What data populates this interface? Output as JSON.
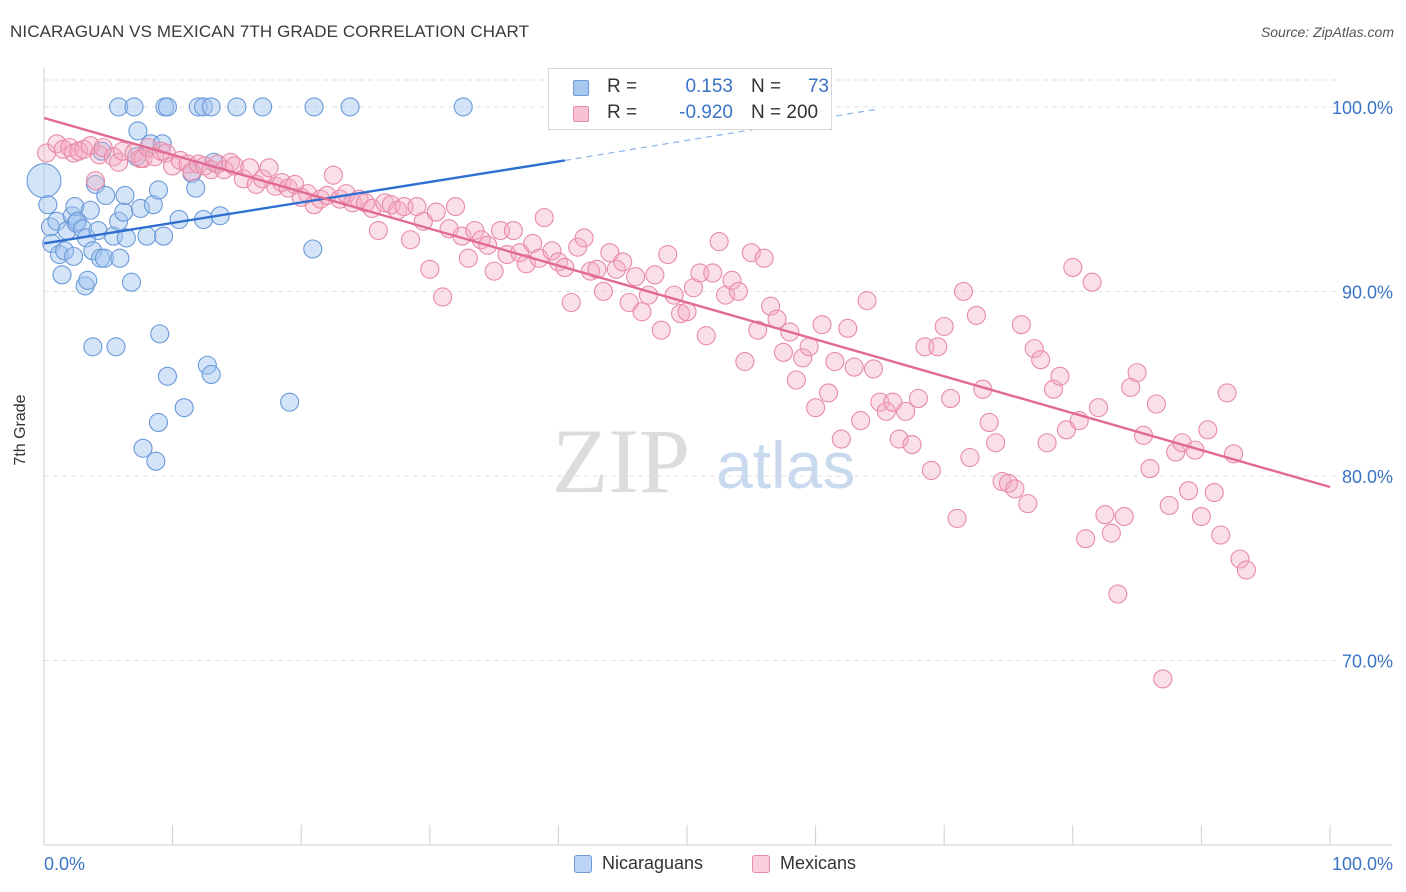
{
  "title": "NICARAGUAN VS MEXICAN 7TH GRADE CORRELATION CHART",
  "source": "Source: ZipAtlas.com",
  "watermark": {
    "zip": "ZIP",
    "atlas": "atlas"
  },
  "legend_top": {
    "rows": [
      {
        "r_label": "R =",
        "r_value": "0.153",
        "n_label": "N =",
        "n_value": "73",
        "color": "#a9c8f0",
        "border": "#6a9ad8"
      },
      {
        "r_label": "R =",
        "r_value": "-0.920",
        "n_label": "N = 200",
        "n_value": "",
        "color": "#f7c3d3",
        "border": "#e88aa8"
      }
    ]
  },
  "legend_bottom": [
    {
      "label": "Nicaraguans",
      "color": "#bcd4f5",
      "border": "#6a9ad8"
    },
    {
      "label": "Mexicans",
      "color": "#f9cfdc",
      "border": "#e88aa8"
    }
  ],
  "chart_data": {
    "type": "scatter",
    "title": "NICARAGUAN VS MEXICAN 7TH GRADE CORRELATION CHART",
    "xlabel": "",
    "ylabel": "7th Grade",
    "xlim": [
      0,
      100
    ],
    "ylim": [
      60,
      102
    ],
    "x_tick_labels": [
      "0.0%",
      "100.0%"
    ],
    "y_ticks": [
      70,
      80,
      90,
      100
    ],
    "y_tick_labels": [
      "70.0%",
      "80.0%",
      "90.0%",
      "100.0%"
    ],
    "grid": true,
    "series": [
      {
        "name": "Nicaraguans",
        "color": "#6a9ad8",
        "fill": "rgba(160,195,240,0.45)",
        "trend": {
          "x": [
            0,
            40.5
          ],
          "y": [
            92.6,
            97.1
          ],
          "dashed_to": [
            65,
            99.9
          ]
        },
        "points": [
          [
            5.8,
            100
          ],
          [
            7,
            100
          ],
          [
            9.4,
            100
          ],
          [
            9.6,
            100
          ],
          [
            12,
            100
          ],
          [
            12.4,
            100
          ],
          [
            13,
            100
          ],
          [
            15,
            100
          ],
          [
            17,
            100
          ],
          [
            21,
            100
          ],
          [
            23.8,
            100
          ],
          [
            32.6,
            100
          ],
          [
            0,
            96
          ],
          [
            0.3,
            94.7
          ],
          [
            0.5,
            93.5
          ],
          [
            0.6,
            92.6
          ],
          [
            1,
            93.8
          ],
          [
            1.2,
            92
          ],
          [
            1.4,
            90.9
          ],
          [
            1.6,
            92.2
          ],
          [
            1.8,
            93.3
          ],
          [
            2.2,
            94.1
          ],
          [
            2.3,
            91.9
          ],
          [
            2.5,
            93.7
          ],
          [
            2.4,
            94.6
          ],
          [
            2.6,
            93.8
          ],
          [
            3,
            93.4
          ],
          [
            3.2,
            90.3
          ],
          [
            3.3,
            92.9
          ],
          [
            3.4,
            90.6
          ],
          [
            3.6,
            94.4
          ],
          [
            3.8,
            92.2
          ],
          [
            3.8,
            87
          ],
          [
            4,
            95.8
          ],
          [
            4.2,
            93.3
          ],
          [
            4.4,
            91.8
          ],
          [
            4.5,
            97.6
          ],
          [
            4.7,
            91.8
          ],
          [
            4.8,
            95.2
          ],
          [
            5.4,
            93
          ],
          [
            5.6,
            87
          ],
          [
            5.8,
            93.8
          ],
          [
            5.9,
            91.8
          ],
          [
            6.2,
            94.3
          ],
          [
            6.3,
            95.2
          ],
          [
            6.4,
            92.9
          ],
          [
            6.8,
            90.5
          ],
          [
            7.2,
            97.3
          ],
          [
            7.3,
            98.7
          ],
          [
            7.5,
            94.5
          ],
          [
            7.7,
            81.5
          ],
          [
            8,
            93
          ],
          [
            8.3,
            98
          ],
          [
            8.5,
            94.7
          ],
          [
            8.7,
            80.8
          ],
          [
            8.9,
            95.5
          ],
          [
            8.9,
            82.9
          ],
          [
            9,
            87.7
          ],
          [
            9.2,
            98
          ],
          [
            9.3,
            93
          ],
          [
            9.6,
            85.4
          ],
          [
            10.5,
            93.9
          ],
          [
            10.9,
            83.7
          ],
          [
            11.5,
            96.4
          ],
          [
            11.8,
            95.6
          ],
          [
            12.4,
            93.9
          ],
          [
            12.7,
            86
          ],
          [
            13,
            85.5
          ],
          [
            13.2,
            97
          ],
          [
            13.7,
            94.1
          ],
          [
            19.1,
            84
          ],
          [
            20.9,
            92.3
          ]
        ]
      },
      {
        "name": "Mexicans",
        "color": "#e88aa8",
        "fill": "rgba(245,170,195,0.38)",
        "trend": {
          "x": [
            0,
            100
          ],
          "y": [
            99.4,
            79.4
          ]
        },
        "points": [
          [
            0.2,
            97.5
          ],
          [
            1,
            98
          ],
          [
            1.5,
            97.7
          ],
          [
            2,
            97.8
          ],
          [
            2.3,
            97.5
          ],
          [
            2.7,
            97.6
          ],
          [
            3.1,
            97.7
          ],
          [
            3.6,
            97.9
          ],
          [
            4,
            96
          ],
          [
            4.3,
            97.4
          ],
          [
            4.6,
            97.8
          ],
          [
            5.4,
            97.3
          ],
          [
            5.8,
            97
          ],
          [
            6.1,
            97.6
          ],
          [
            7,
            97.5
          ],
          [
            7.5,
            97.2
          ],
          [
            7.7,
            97.2
          ],
          [
            8.1,
            97.8
          ],
          [
            8.6,
            97.3
          ],
          [
            9.1,
            97.6
          ],
          [
            9.5,
            97.5
          ],
          [
            10,
            96.8
          ],
          [
            10.6,
            97.1
          ],
          [
            11.2,
            96.9
          ],
          [
            11.5,
            96.5
          ],
          [
            12,
            96.9
          ],
          [
            12.5,
            96.8
          ],
          [
            13,
            96.6
          ],
          [
            13.5,
            96.9
          ],
          [
            14,
            96.6
          ],
          [
            14.5,
            97
          ],
          [
            14.8,
            96.8
          ],
          [
            15.5,
            96.1
          ],
          [
            16,
            96.7
          ],
          [
            16.5,
            95.8
          ],
          [
            17,
            96.1
          ],
          [
            17.5,
            96.7
          ],
          [
            18,
            95.7
          ],
          [
            18.5,
            95.9
          ],
          [
            19,
            95.6
          ],
          [
            19.5,
            95.8
          ],
          [
            20,
            95.1
          ],
          [
            20.5,
            95.3
          ],
          [
            21,
            94.7
          ],
          [
            21.5,
            95
          ],
          [
            22,
            95.2
          ],
          [
            22.5,
            96.3
          ],
          [
            23,
            95
          ],
          [
            23.5,
            95.3
          ],
          [
            24,
            94.8
          ],
          [
            24.5,
            95
          ],
          [
            25,
            94.8
          ],
          [
            25.5,
            94.5
          ],
          [
            26,
            93.3
          ],
          [
            26.5,
            94.8
          ],
          [
            27,
            94.7
          ],
          [
            27.5,
            94.4
          ],
          [
            28,
            94.6
          ],
          [
            28.5,
            92.8
          ],
          [
            29,
            94.6
          ],
          [
            29.5,
            93.8
          ],
          [
            30,
            91.2
          ],
          [
            30.5,
            94.3
          ],
          [
            31,
            89.7
          ],
          [
            31.5,
            93.4
          ],
          [
            32,
            94.6
          ],
          [
            32.5,
            93
          ],
          [
            33,
            91.8
          ],
          [
            33.5,
            93.3
          ],
          [
            34,
            92.8
          ],
          [
            34.5,
            92.5
          ],
          [
            35,
            91.1
          ],
          [
            35.5,
            93.3
          ],
          [
            36,
            92
          ],
          [
            36.5,
            93.3
          ],
          [
            37,
            92.1
          ],
          [
            37.5,
            91.5
          ],
          [
            38,
            92.6
          ],
          [
            38.5,
            91.8
          ],
          [
            38.9,
            94
          ],
          [
            39.5,
            92.2
          ],
          [
            40,
            91.6
          ],
          [
            40.5,
            91.3
          ],
          [
            41,
            89.4
          ],
          [
            41.5,
            92.4
          ],
          [
            42,
            92.9
          ],
          [
            42.5,
            91.1
          ],
          [
            43,
            91.2
          ],
          [
            43.5,
            90
          ],
          [
            44,
            92.1
          ],
          [
            44.5,
            91.2
          ],
          [
            45,
            91.6
          ],
          [
            45.5,
            89.4
          ],
          [
            46,
            90.8
          ],
          [
            46.5,
            88.9
          ],
          [
            47,
            89.8
          ],
          [
            47.5,
            90.9
          ],
          [
            48,
            87.9
          ],
          [
            48.5,
            92
          ],
          [
            49,
            89.8
          ],
          [
            49.5,
            88.8
          ],
          [
            50,
            88.9
          ],
          [
            50.5,
            90.2
          ],
          [
            51,
            91
          ],
          [
            51.5,
            87.6
          ],
          [
            52,
            91
          ],
          [
            52.5,
            92.7
          ],
          [
            53,
            89.8
          ],
          [
            53.5,
            90.6
          ],
          [
            54,
            90
          ],
          [
            54.5,
            86.2
          ],
          [
            55,
            92.1
          ],
          [
            55.5,
            87.9
          ],
          [
            56,
            91.8
          ],
          [
            56.5,
            89.2
          ],
          [
            57,
            88.5
          ],
          [
            57.5,
            86.7
          ],
          [
            58,
            87.8
          ],
          [
            58.5,
            85.2
          ],
          [
            59,
            86.4
          ],
          [
            59.5,
            87
          ],
          [
            60,
            83.7
          ],
          [
            60.5,
            88.2
          ],
          [
            61,
            84.5
          ],
          [
            61.5,
            86.2
          ],
          [
            62,
            82
          ],
          [
            62.5,
            88
          ],
          [
            63,
            85.9
          ],
          [
            63.5,
            83
          ],
          [
            64,
            89.5
          ],
          [
            64.5,
            85.8
          ],
          [
            65,
            84
          ],
          [
            65.5,
            83.5
          ],
          [
            66,
            84
          ],
          [
            66.5,
            82
          ],
          [
            67,
            83.5
          ],
          [
            67.5,
            81.7
          ],
          [
            68,
            84.2
          ],
          [
            68.5,
            87
          ],
          [
            69,
            80.3
          ],
          [
            69.5,
            87
          ],
          [
            70,
            88.1
          ],
          [
            70.5,
            84.2
          ],
          [
            71,
            77.7
          ],
          [
            71.5,
            90
          ],
          [
            72,
            81
          ],
          [
            72.5,
            88.7
          ],
          [
            73,
            84.7
          ],
          [
            73.5,
            82.9
          ],
          [
            74,
            81.8
          ],
          [
            74.5,
            79.7
          ],
          [
            75,
            79.6
          ],
          [
            75.5,
            79.3
          ],
          [
            76,
            88.2
          ],
          [
            76.5,
            78.5
          ],
          [
            77,
            86.9
          ],
          [
            77.5,
            86.3
          ],
          [
            78,
            81.8
          ],
          [
            78.5,
            84.7
          ],
          [
            79,
            85.4
          ],
          [
            79.5,
            82.5
          ],
          [
            80,
            91.3
          ],
          [
            80.5,
            83
          ],
          [
            81,
            76.6
          ],
          [
            81.5,
            90.5
          ],
          [
            82,
            83.7
          ],
          [
            82.5,
            77.9
          ],
          [
            83,
            76.9
          ],
          [
            83.5,
            73.6
          ],
          [
            84,
            77.8
          ],
          [
            84.5,
            84.8
          ],
          [
            85,
            85.6
          ],
          [
            85.5,
            82.2
          ],
          [
            86,
            80.4
          ],
          [
            86.5,
            83.9
          ],
          [
            87,
            69
          ],
          [
            87.5,
            78.4
          ],
          [
            88,
            81.3
          ],
          [
            88.5,
            81.8
          ],
          [
            89,
            79.2
          ],
          [
            89.5,
            81.4
          ],
          [
            90,
            77.8
          ],
          [
            90.5,
            82.5
          ],
          [
            91,
            79.1
          ],
          [
            91.5,
            76.8
          ],
          [
            92,
            84.5
          ],
          [
            92.5,
            81.2
          ],
          [
            93,
            75.5
          ],
          [
            93.5,
            74.9
          ]
        ]
      }
    ]
  }
}
